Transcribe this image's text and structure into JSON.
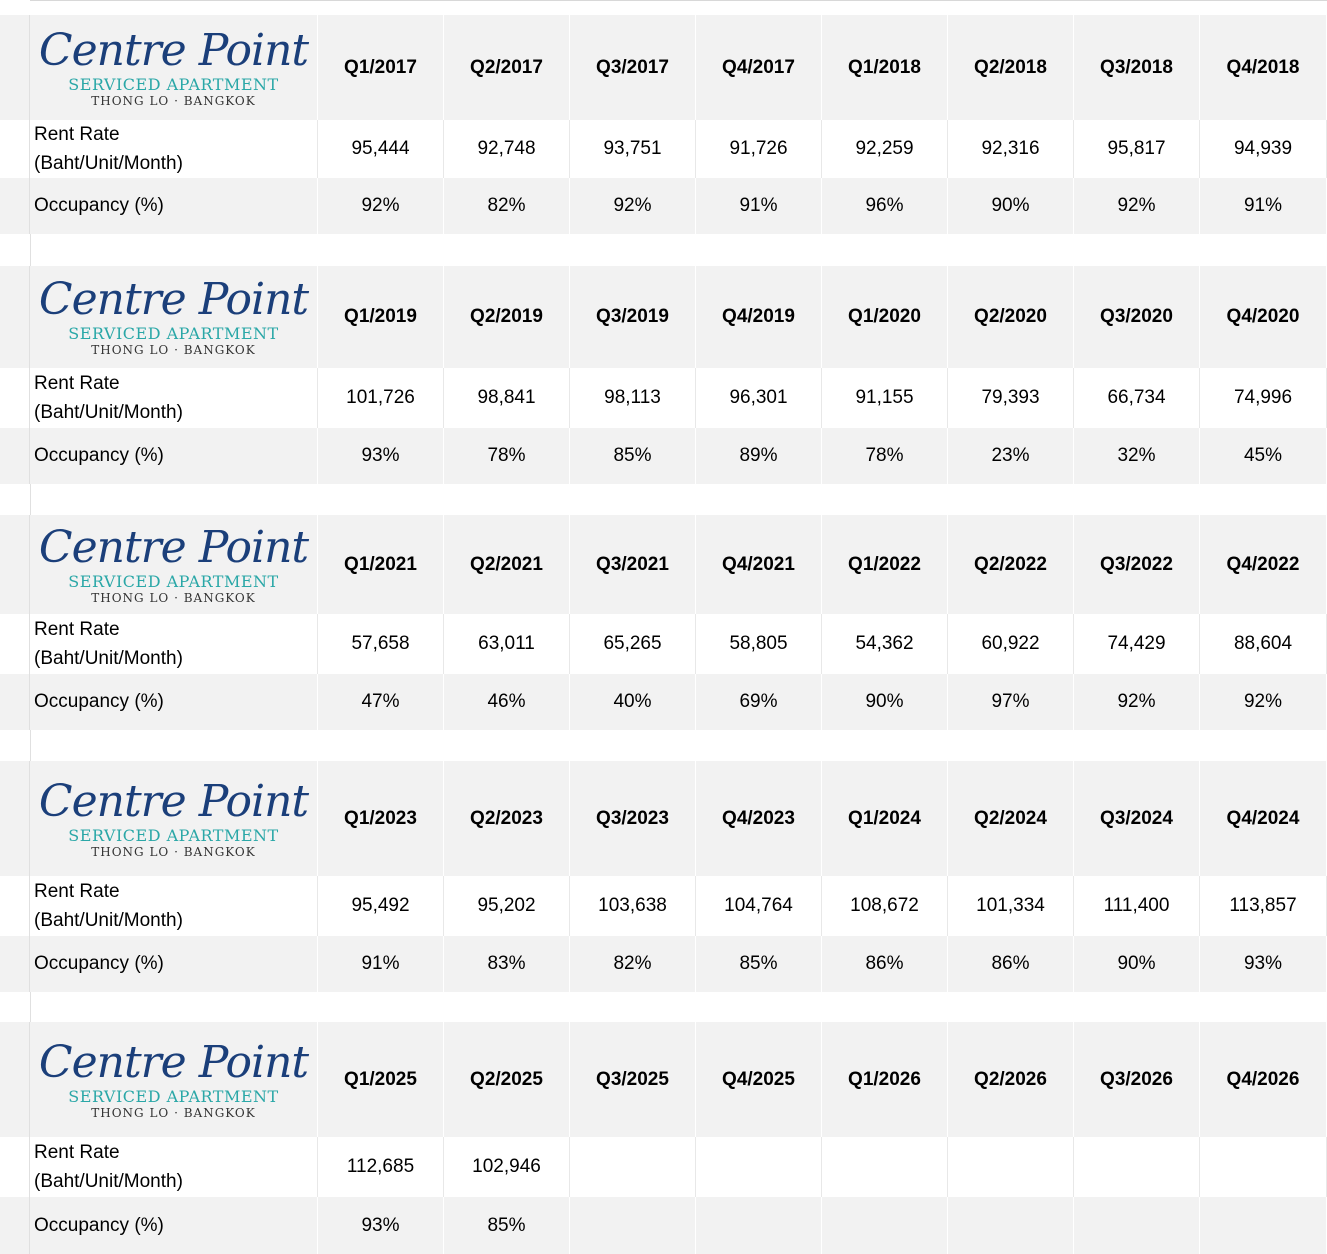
{
  "logo": {
    "name": "Centre Point",
    "subtitle": "SERVICED APARTMENT",
    "location": "THONG LO · BANGKOK"
  },
  "labels": {
    "rent_line1": "Rent Rate",
    "rent_line2": "(Baht/Unit/Month)",
    "occupancy": "Occupancy (%)"
  },
  "blocks": [
    {
      "quarters": [
        "Q1/2017",
        "Q2/2017",
        "Q3/2017",
        "Q4/2017",
        "Q1/2018",
        "Q2/2018",
        "Q3/2018",
        "Q4/2018"
      ],
      "rent": [
        "95,444",
        "92,748",
        "93,751",
        "91,726",
        "92,259",
        "92,316",
        "95,817",
        "94,939"
      ],
      "occupancy": [
        "92%",
        "82%",
        "92%",
        "91%",
        "96%",
        "90%",
        "92%",
        "91%"
      ]
    },
    {
      "quarters": [
        "Q1/2019",
        "Q2/2019",
        "Q3/2019",
        "Q4/2019",
        "Q1/2020",
        "Q2/2020",
        "Q3/2020",
        "Q4/2020"
      ],
      "rent": [
        "101,726",
        "98,841",
        "98,113",
        "96,301",
        "91,155",
        "79,393",
        "66,734",
        "74,996"
      ],
      "occupancy": [
        "93%",
        "78%",
        "85%",
        "89%",
        "78%",
        "23%",
        "32%",
        "45%"
      ]
    },
    {
      "quarters": [
        "Q1/2021",
        "Q2/2021",
        "Q3/2021",
        "Q4/2021",
        "Q1/2022",
        "Q2/2022",
        "Q3/2022",
        "Q4/2022"
      ],
      "rent": [
        "57,658",
        "63,011",
        "65,265",
        "58,805",
        "54,362",
        "60,922",
        "74,429",
        "88,604"
      ],
      "occupancy": [
        "47%",
        "46%",
        "40%",
        "69%",
        "90%",
        "97%",
        "92%",
        "92%"
      ]
    },
    {
      "quarters": [
        "Q1/2023",
        "Q2/2023",
        "Q3/2023",
        "Q4/2023",
        "Q1/2024",
        "Q2/2024",
        "Q3/2024",
        "Q4/2024"
      ],
      "rent": [
        "95,492",
        "95,202",
        "103,638",
        "104,764",
        "108,672",
        "101,334",
        "111,400",
        "113,857"
      ],
      "occupancy": [
        "91%",
        "83%",
        "82%",
        "85%",
        "86%",
        "86%",
        "90%",
        "93%"
      ]
    },
    {
      "quarters": [
        "Q1/2025",
        "Q2/2025",
        "Q3/2025",
        "Q4/2025",
        "Q1/2026",
        "Q2/2026",
        "Q3/2026",
        "Q4/2026"
      ],
      "rent": [
        "112,685",
        "102,946",
        "",
        "",
        "",
        "",
        "",
        ""
      ],
      "occupancy": [
        "93%",
        "85%",
        "",
        "",
        "",
        "",
        "",
        ""
      ]
    }
  ]
}
